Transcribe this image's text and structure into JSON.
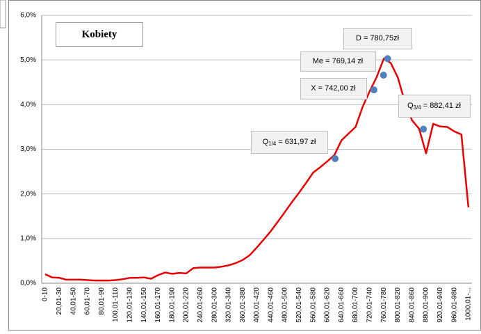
{
  "chart_data": {
    "type": "line",
    "title": "Kobiety",
    "categories": [
      "0-10",
      null,
      "20,01-30",
      null,
      "40,01-50",
      null,
      "60,01-70",
      null,
      "80,01-90",
      null,
      "100,01-110",
      null,
      "120,01-130",
      null,
      "140,01-150",
      null,
      "160,01-170",
      null,
      "180,01-190",
      null,
      "200,01-220",
      null,
      "240,01-260",
      null,
      "280,01-300",
      null,
      "320,01-340",
      null,
      "360,01-380",
      null,
      "400,01-420",
      null,
      "440,01-460",
      null,
      "480,01-500",
      null,
      "520,01-540",
      null,
      "560,01-580",
      null,
      "600,01-620",
      null,
      "640,01-660",
      null,
      "680,01-700",
      null,
      "720,01-740",
      null,
      "760,01-780",
      null,
      "800,01-820",
      null,
      "840,01-860",
      null,
      "880,01-900",
      null,
      "920,01-940",
      null,
      "960,01-980",
      null,
      "1000,01-..."
    ],
    "series": [
      {
        "color": "#e60000",
        "values": [
          0.2,
          0.13,
          0.12,
          0.08,
          0.08,
          0.08,
          0.07,
          0.06,
          0.06,
          0.06,
          0.07,
          0.09,
          0.12,
          0.12,
          0.13,
          0.1,
          0.18,
          0.24,
          0.21,
          0.23,
          0.22,
          0.34,
          0.35,
          0.35,
          0.35,
          0.37,
          0.4,
          0.45,
          0.52,
          0.63,
          0.8,
          0.98,
          1.17,
          1.38,
          1.6,
          1.82,
          2.03,
          2.25,
          2.48,
          2.6,
          2.73,
          2.87,
          3.2,
          3.35,
          3.5,
          3.95,
          4.3,
          4.62,
          5.03,
          4.93,
          4.6,
          4.05,
          3.65,
          3.46,
          2.91,
          3.57,
          3.51,
          3.5,
          3.4,
          3.33,
          1.7
        ]
      }
    ],
    "marker_color": "#4f81bd",
    "annotations": [
      {
        "parts": [
          "D = 780,75zł"
        ],
        "x": 780.75,
        "y": 5.03
      },
      {
        "parts": [
          "Me = 769,14 zł"
        ],
        "x": 769.14,
        "y": 4.66
      },
      {
        "parts": [
          "X = 742,00 zł"
        ],
        "x": 742.0,
        "y": 4.33
      },
      {
        "parts": [
          "Q",
          "1/4",
          " = 631,97 zł"
        ],
        "x": 631.97,
        "y": 2.79
      },
      {
        "parts": [
          "Q",
          "3/4",
          " = 882,41 zł"
        ],
        "x": 882.41,
        "y": 3.45
      }
    ],
    "ylim": [
      0,
      6
    ],
    "yticks": [
      {
        "value": 0,
        "label": "0,0%"
      },
      {
        "value": 1,
        "label": "1,0%"
      },
      {
        "value": 2,
        "label": "2,0%"
      },
      {
        "value": 3,
        "label": "3,0%"
      },
      {
        "value": 4,
        "label": "4,0%"
      },
      {
        "value": 5,
        "label": "5,0%"
      },
      {
        "value": 6,
        "label": "6,0%"
      }
    ],
    "grid": true
  }
}
